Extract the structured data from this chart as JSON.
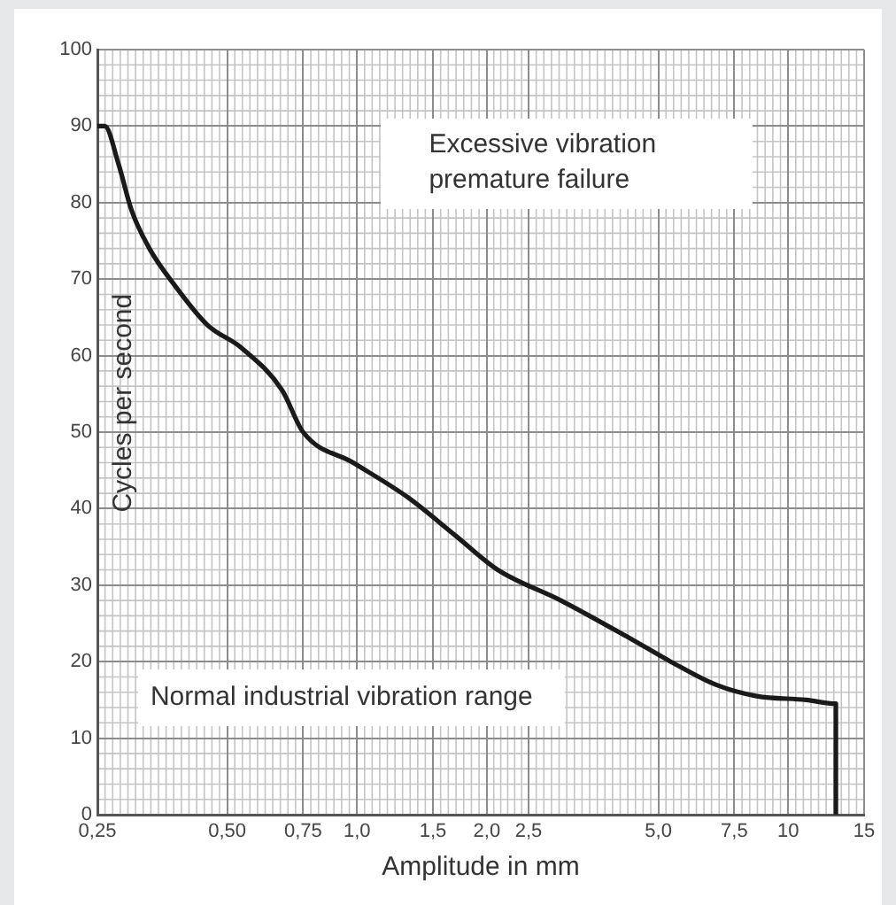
{
  "chart_data": {
    "type": "line",
    "xlabel": "Amplitude in mm",
    "ylabel": "Cycles per second",
    "annotations": [
      "Excessive vibration\npremature failure",
      "Normal industrial vibration range"
    ],
    "x": [
      0.25,
      0.26,
      0.28,
      0.3,
      0.33,
      0.38,
      0.45,
      0.54,
      0.67,
      0.75,
      0.98,
      1.31,
      1.69,
      2.12,
      2.97,
      4.31,
      5.34,
      6.79,
      8.45,
      11,
      12.9,
      12.9
    ],
    "series": [
      {
        "color": "#1a1a1a",
        "values": [
          90,
          90,
          85,
          79,
          74,
          69,
          64,
          61,
          55.5,
          50,
          46,
          41.5,
          36.5,
          32,
          28,
          23,
          20,
          17,
          15.5,
          15,
          14.5,
          0
        ]
      }
    ],
    "xlim": [
      0.25,
      15
    ],
    "xticks": [
      {
        "value": 0.25,
        "label": "0,25"
      },
      {
        "value": 0.5,
        "label": "0,50"
      },
      {
        "value": 0.75,
        "label": "0,75"
      },
      {
        "value": 1,
        "label": "1,0"
      },
      {
        "value": 1.5,
        "label": "1,5"
      },
      {
        "value": 2,
        "label": "2,0"
      },
      {
        "value": 2.5,
        "label": "2,5"
      },
      {
        "value": 5,
        "label": "5,0"
      },
      {
        "value": 7.5,
        "label": "7,5"
      },
      10,
      15
    ],
    "ylim": [
      0,
      100
    ],
    "yticks": [
      0,
      10,
      20,
      30,
      40,
      50,
      60,
      70,
      80,
      90,
      100
    ],
    "log": "x",
    "grid": true,
    "marker": "none",
    "line_style": "solid"
  }
}
